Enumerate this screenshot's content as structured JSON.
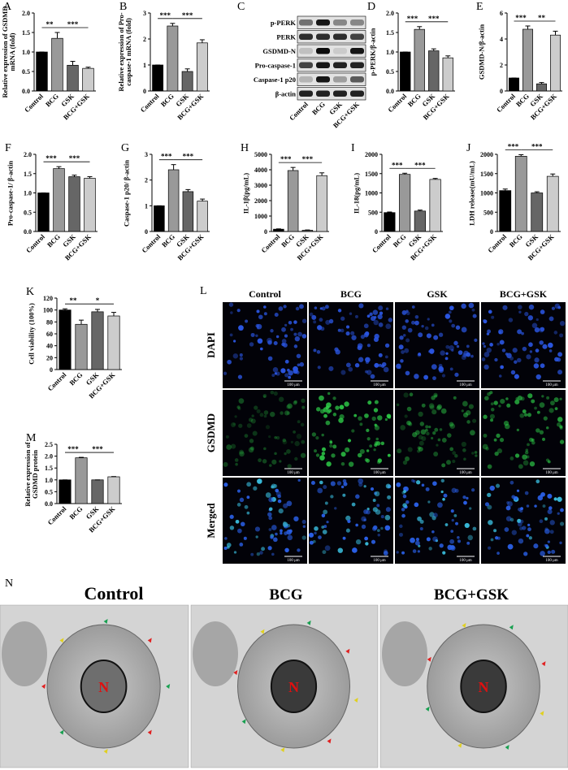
{
  "chart_data": [
    {
      "panel": "A",
      "type": "bar",
      "y_label": "Relative expression of GSDMD mRNA (fold)",
      "categories": [
        "Control",
        "BCG",
        "GSK",
        "BCG+GSK"
      ],
      "values": [
        1.0,
        1.35,
        0.66,
        0.58
      ],
      "errors": [
        0,
        0.15,
        0.1,
        0.03
      ],
      "colors": [
        "#000000",
        "#999999",
        "#666666",
        "#cccccc"
      ],
      "ylim": [
        0,
        2
      ],
      "yticks": [
        {
          "value": 0,
          "label": "0.0"
        },
        0.5,
        {
          "value": 1,
          "label": "1.0"
        },
        1.5,
        {
          "value": 2,
          "label": "2.0"
        }
      ],
      "significance": [
        "**",
        "***"
      ]
    },
    {
      "panel": "B",
      "type": "bar",
      "y_label": "Relative expression of Pro-caspase-1 mRNA (fold)",
      "categories": [
        "Control",
        "BCG",
        "GSK",
        "BCG+GSK"
      ],
      "values": [
        1.0,
        2.5,
        0.75,
        1.85
      ],
      "errors": [
        0,
        0.1,
        0.1,
        0.12
      ],
      "colors": [
        "#000000",
        "#999999",
        "#666666",
        "#cccccc"
      ],
      "ylim": [
        0,
        3
      ],
      "yticks": [
        0,
        1,
        2,
        3
      ],
      "significance": [
        "***",
        "***"
      ]
    },
    {
      "panel": "D",
      "type": "bar",
      "y_label": "p-PERK/β-actin",
      "categories": [
        "Control",
        "BCG",
        "GSK",
        "BCG+GSK"
      ],
      "values": [
        1.0,
        1.58,
        1.03,
        0.85
      ],
      "errors": [
        0,
        0.07,
        0.05,
        0.05
      ],
      "colors": [
        "#000000",
        "#999999",
        "#666666",
        "#cccccc"
      ],
      "ylim": [
        0,
        2
      ],
      "yticks": [
        {
          "value": 0,
          "label": "0.0"
        },
        0.5,
        {
          "value": 1,
          "label": "1.0"
        },
        1.5,
        {
          "value": 2,
          "label": "2.0"
        }
      ],
      "significance": [
        "***",
        "***"
      ]
    },
    {
      "panel": "E",
      "type": "bar",
      "y_label": "GSDMD-N/β-actin",
      "categories": [
        "Control",
        "BCG",
        "GSK",
        "BCG+GSK"
      ],
      "values": [
        1.0,
        4.75,
        0.55,
        4.3
      ],
      "errors": [
        0,
        0.25,
        0.1,
        0.3
      ],
      "colors": [
        "#000000",
        "#999999",
        "#666666",
        "#cccccc"
      ],
      "ylim": [
        0,
        6
      ],
      "yticks": [
        0,
        2,
        4,
        6
      ],
      "significance": [
        "***",
        "**"
      ]
    },
    {
      "panel": "F",
      "type": "bar",
      "y_label": "Pro-caspase-1/ β-actin",
      "categories": [
        "Control",
        "BCG",
        "GSK",
        "BCG+GSK"
      ],
      "values": [
        1.0,
        1.63,
        1.42,
        1.38
      ],
      "errors": [
        0,
        0.05,
        0.04,
        0.04
      ],
      "colors": [
        "#000000",
        "#999999",
        "#666666",
        "#cccccc"
      ],
      "ylim": [
        0,
        2
      ],
      "yticks": [
        {
          "value": 0,
          "label": "0.0"
        },
        0.5,
        {
          "value": 1,
          "label": "1.0"
        },
        1.5,
        {
          "value": 2,
          "label": "2.0"
        }
      ],
      "significance": [
        "***",
        "***"
      ]
    },
    {
      "panel": "G",
      "type": "bar",
      "y_label": "Caspase-1 p20/ β-actin",
      "categories": [
        "Control",
        "BCG",
        "GSK",
        "BCG+GSK"
      ],
      "values": [
        1.0,
        2.4,
        1.55,
        1.18
      ],
      "errors": [
        0,
        0.2,
        0.08,
        0.08
      ],
      "colors": [
        "#000000",
        "#999999",
        "#666666",
        "#cccccc"
      ],
      "ylim": [
        0,
        3
      ],
      "yticks": [
        0,
        1,
        2,
        3
      ],
      "significance": [
        "***",
        "***"
      ]
    },
    {
      "panel": "H",
      "type": "bar",
      "y_label": "IL-1β(pg/mL)",
      "categories": [
        "Control",
        "BCG",
        "GSK",
        "BCG+GSK"
      ],
      "values": [
        150,
        3950,
        80,
        3620
      ],
      "errors": [
        20,
        200,
        20,
        180
      ],
      "colors": [
        "#000000",
        "#999999",
        "#666666",
        "#cccccc"
      ],
      "ylim": [
        0,
        5000
      ],
      "yticks": [
        0,
        1000,
        2000,
        3000,
        4000,
        5000
      ],
      "significance": [
        "***",
        "***"
      ]
    },
    {
      "panel": "I",
      "type": "bar",
      "y_label": "IL-18(pg/mL)",
      "categories": [
        "Control",
        "BCG",
        "GSK",
        "BCG+GSK"
      ],
      "values": [
        490,
        1480,
        530,
        1350
      ],
      "errors": [
        15,
        30,
        25,
        25
      ],
      "colors": [
        "#000000",
        "#999999",
        "#666666",
        "#cccccc"
      ],
      "ylim": [
        0,
        2000
      ],
      "yticks": [
        0,
        500,
        1000,
        1500,
        2000
      ],
      "significance": [
        "***",
        "***"
      ]
    },
    {
      "panel": "J",
      "type": "bar",
      "y_label": "LDH release(mU/mL)",
      "categories": [
        "Control",
        "BCG",
        "GSK",
        "BCG+GSK"
      ],
      "values": [
        1060,
        1950,
        1000,
        1430
      ],
      "errors": [
        40,
        40,
        30,
        60
      ],
      "colors": [
        "#000000",
        "#999999",
        "#666666",
        "#cccccc"
      ],
      "ylim": [
        0,
        2000
      ],
      "yticks": [
        0,
        500,
        1000,
        1500,
        2000
      ],
      "significance": [
        "***",
        "***"
      ]
    },
    {
      "panel": "K",
      "type": "bar",
      "y_label": "Cell viability (100%)",
      "categories": [
        "Control",
        "BCG",
        "GSK",
        "BCG+GSK"
      ],
      "values": [
        100,
        76,
        97,
        90
      ],
      "errors": [
        2,
        7,
        4,
        6
      ],
      "colors": [
        "#000000",
        "#999999",
        "#666666",
        "#cccccc"
      ],
      "ylim": [
        0,
        120
      ],
      "yticks": [
        0,
        20,
        40,
        60,
        80,
        100,
        120
      ],
      "significance": [
        "**",
        "*"
      ]
    },
    {
      "panel": "M",
      "type": "bar",
      "y_label": "Relative expression of GSDMD protein",
      "categories": [
        "Control",
        "BCG",
        "GSK",
        "BCG+GSK"
      ],
      "values": [
        1.0,
        1.93,
        1.0,
        1.13
      ],
      "errors": [
        0,
        0.02,
        0,
        0.01
      ],
      "colors": [
        "#000000",
        "#999999",
        "#666666",
        "#cccccc"
      ],
      "ylim": [
        0,
        2.5
      ],
      "yticks": [
        {
          "value": 0,
          "label": "0.0"
        },
        0.5,
        {
          "value": 1,
          "label": "1.0"
        },
        1.5,
        {
          "value": 2,
          "label": "2.0"
        },
        2.5
      ],
      "significance": [
        "***",
        "***"
      ]
    }
  ],
  "blot": {
    "panel": "C",
    "rows": [
      "p-PERK",
      "PERK",
      "GSDMD-N",
      "Pro-caspase-1",
      "Caspase-1 p20",
      "β-actin"
    ],
    "lanes": [
      "Control",
      "BCG",
      "GSK",
      "BCG+GSK"
    ]
  },
  "microscopy": {
    "panel": "L",
    "columns": [
      "Control",
      "BCG",
      "GSK",
      "BCG+GSK"
    ],
    "rows": [
      "DAPI",
      "GSDMD",
      "Merged"
    ],
    "scale_bar": "100 μm"
  },
  "tem": {
    "panel": "N",
    "titles": [
      "Control",
      "BCG",
      "BCG+GSK"
    ],
    "nucleus_label": "N"
  }
}
